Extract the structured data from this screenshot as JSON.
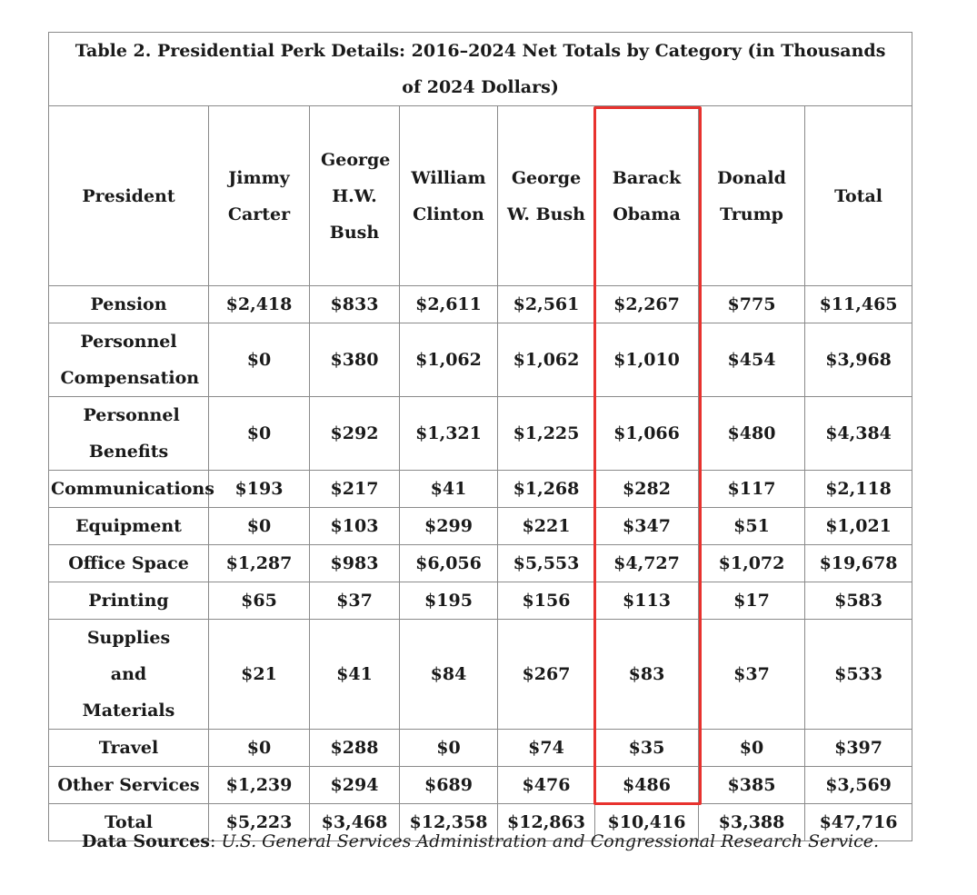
{
  "table": {
    "title": "Table 2. Presidential Perk Details: 2016–2024 Net Totals by Category (in Thousands of 2024 Dollars)",
    "columns": [
      "President",
      "Jimmy Carter",
      "George H.W. Bush",
      "William Clinton",
      "George W. Bush",
      "Barack Obama",
      "Donald Trump",
      "Total"
    ],
    "highlight_column": "Barack Obama",
    "highlight_color": "#e8322e",
    "rows": [
      {
        "label": "Pension",
        "cells": [
          "$2,418",
          "$833",
          "$2,611",
          "$2,561",
          "$2,267",
          "$775",
          "$11,465"
        ]
      },
      {
        "label": "Personnel Compensation",
        "cells": [
          "$0",
          "$380",
          "$1,062",
          "$1,062",
          "$1,010",
          "$454",
          "$3,968"
        ]
      },
      {
        "label": "Personnel Benefits",
        "cells": [
          "$0",
          "$292",
          "$1,321",
          "$1,225",
          "$1,066",
          "$480",
          "$4,384"
        ]
      },
      {
        "label": "Communications",
        "cells": [
          "$193",
          "$217",
          "$41",
          "$1,268",
          "$282",
          "$117",
          "$2,118"
        ]
      },
      {
        "label": "Equipment",
        "cells": [
          "$0",
          "$103",
          "$299",
          "$221",
          "$347",
          "$51",
          "$1,021"
        ]
      },
      {
        "label": "Office Space",
        "cells": [
          "$1,287",
          "$983",
          "$6,056",
          "$5,553",
          "$4,727",
          "$1,072",
          "$19,678"
        ]
      },
      {
        "label": "Printing",
        "cells": [
          "$65",
          "$37",
          "$195",
          "$156",
          "$113",
          "$17",
          "$583"
        ]
      },
      {
        "label": "Supplies and Materials",
        "cells": [
          "$21",
          "$41",
          "$84",
          "$267",
          "$83",
          "$37",
          "$533"
        ]
      },
      {
        "label": "Travel",
        "cells": [
          "$0",
          "$288",
          "$0",
          "$74",
          "$35",
          "$0",
          "$397"
        ]
      },
      {
        "label": "Other Services",
        "cells": [
          "$1,239",
          "$294",
          "$689",
          "$476",
          "$486",
          "$385",
          "$3,569"
        ]
      },
      {
        "label": "Total",
        "cells": [
          "$5,223",
          "$3,468",
          "$12,358",
          "$12,863",
          "$10,416",
          "$3,388",
          "$47,716"
        ]
      }
    ]
  },
  "sources": {
    "label": "Data Sources",
    "text": "U.S. General Services Administration and Congressional Research Service."
  },
  "chart_data": {
    "type": "table",
    "title": "Table 2. Presidential Perk Details: 2016–2024 Net Totals by Category (in Thousands of 2024 Dollars)",
    "columns": [
      "President",
      "Jimmy Carter",
      "George H.W. Bush",
      "William Clinton",
      "George W. Bush",
      "Barack Obama",
      "Donald Trump",
      "Total"
    ],
    "categories": [
      "Pension",
      "Personnel Compensation",
      "Personnel Benefits",
      "Communications",
      "Equipment",
      "Office Space",
      "Printing",
      "Supplies and Materials",
      "Travel",
      "Other Services",
      "Total"
    ],
    "series": [
      {
        "name": "Jimmy Carter",
        "values": [
          2418,
          0,
          0,
          193,
          0,
          1287,
          65,
          21,
          0,
          1239,
          5223
        ]
      },
      {
        "name": "George H.W. Bush",
        "values": [
          833,
          380,
          292,
          217,
          103,
          983,
          37,
          41,
          288,
          294,
          3468
        ]
      },
      {
        "name": "William Clinton",
        "values": [
          2611,
          1062,
          1321,
          41,
          299,
          6056,
          195,
          84,
          0,
          689,
          12358
        ]
      },
      {
        "name": "George W. Bush",
        "values": [
          2561,
          1062,
          1225,
          1268,
          221,
          5553,
          156,
          267,
          74,
          476,
          12863
        ]
      },
      {
        "name": "Barack Obama",
        "values": [
          2267,
          1010,
          1066,
          282,
          347,
          4727,
          113,
          83,
          35,
          486,
          10416
        ]
      },
      {
        "name": "Donald Trump",
        "values": [
          775,
          454,
          480,
          117,
          51,
          1072,
          17,
          37,
          0,
          385,
          3388
        ]
      },
      {
        "name": "Total",
        "values": [
          11465,
          3968,
          4384,
          2118,
          1021,
          19678,
          583,
          533,
          397,
          3569,
          47716
        ]
      }
    ]
  }
}
